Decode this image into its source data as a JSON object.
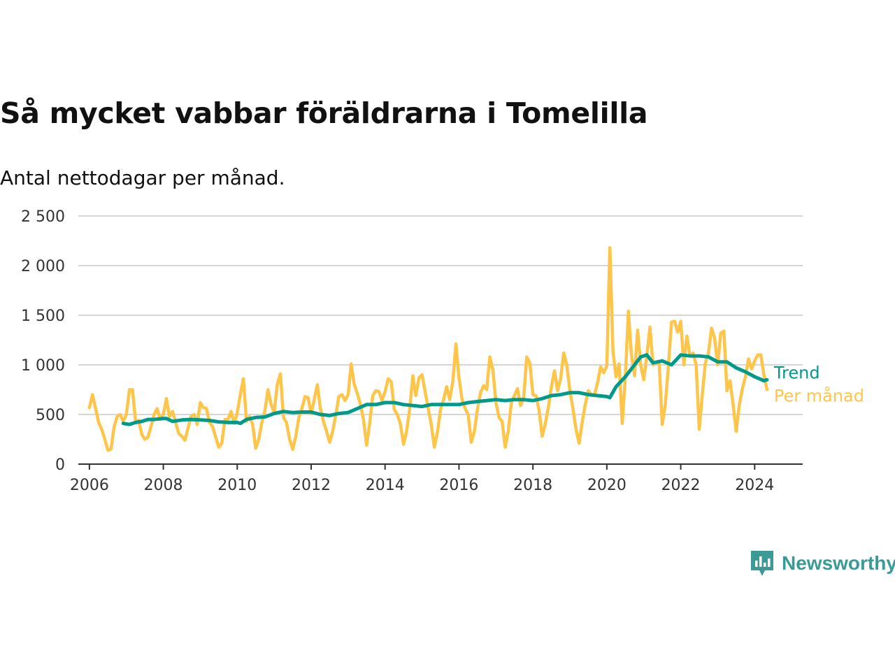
{
  "header": {
    "title": "Så mycket vabbar föräldrarna i Tomelilla",
    "subtitle": "Antal nettodagar per månad."
  },
  "brand": {
    "name": "Newsworthy",
    "icon": "newsworthy-logo-icon",
    "color": "#3a9b96"
  },
  "chart_data": {
    "type": "line",
    "title": "Så mycket vabbar föräldrarna i Tomelilla",
    "subtitle": "Antal nettodagar per månad.",
    "xlabel": "",
    "ylabel": "",
    "xlim": [
      2005.7,
      2025.3
    ],
    "ylim": [
      0,
      2500
    ],
    "x_ticks": [
      2006,
      2008,
      2010,
      2012,
      2014,
      2016,
      2018,
      2020,
      2022,
      2024
    ],
    "x_tick_labels": [
      "2006",
      "2008",
      "2010",
      "2012",
      "2014",
      "2016",
      "2018",
      "2020",
      "2022",
      "2024"
    ],
    "y_ticks": [
      0,
      500,
      1000,
      1500,
      2000,
      2500
    ],
    "y_tick_labels": [
      "0",
      "500",
      "1 000",
      "1 500",
      "2 000",
      "2 500"
    ],
    "grid": "horizontal",
    "legend": "inline-right",
    "series": [
      {
        "name": "Per månad",
        "color": "#fdc54a",
        "x": [
          2006.0,
          2006.083,
          2006.167,
          2006.25,
          2006.333,
          2006.417,
          2006.5,
          2006.583,
          2006.667,
          2006.75,
          2006.833,
          2006.917,
          2007.0,
          2007.083,
          2007.167,
          2007.25,
          2007.333,
          2007.417,
          2007.5,
          2007.583,
          2007.667,
          2007.75,
          2007.833,
          2007.917,
          2008.0,
          2008.083,
          2008.167,
          2008.25,
          2008.333,
          2008.417,
          2008.5,
          2008.583,
          2008.667,
          2008.75,
          2008.833,
          2008.917,
          2009.0,
          2009.083,
          2009.167,
          2009.25,
          2009.333,
          2009.417,
          2009.5,
          2009.583,
          2009.667,
          2009.75,
          2009.833,
          2009.917,
          2010.0,
          2010.083,
          2010.167,
          2010.25,
          2010.333,
          2010.417,
          2010.5,
          2010.583,
          2010.667,
          2010.75,
          2010.833,
          2010.917,
          2011.0,
          2011.083,
          2011.167,
          2011.25,
          2011.333,
          2011.417,
          2011.5,
          2011.583,
          2011.667,
          2011.75,
          2011.833,
          2011.917,
          2012.0,
          2012.083,
          2012.167,
          2012.25,
          2012.333,
          2012.417,
          2012.5,
          2012.583,
          2012.667,
          2012.75,
          2012.833,
          2012.917,
          2013.0,
          2013.083,
          2013.167,
          2013.25,
          2013.333,
          2013.417,
          2013.5,
          2013.583,
          2013.667,
          2013.75,
          2013.833,
          2013.917,
          2014.0,
          2014.083,
          2014.167,
          2014.25,
          2014.333,
          2014.417,
          2014.5,
          2014.583,
          2014.667,
          2014.75,
          2014.833,
          2014.917,
          2015.0,
          2015.083,
          2015.167,
          2015.25,
          2015.333,
          2015.417,
          2015.5,
          2015.583,
          2015.667,
          2015.75,
          2015.833,
          2015.917,
          2016.0,
          2016.083,
          2016.167,
          2016.25,
          2016.333,
          2016.417,
          2016.5,
          2016.583,
          2016.667,
          2016.75,
          2016.833,
          2016.917,
          2017.0,
          2017.083,
          2017.167,
          2017.25,
          2017.333,
          2017.417,
          2017.5,
          2017.583,
          2017.667,
          2017.75,
          2017.833,
          2017.917,
          2018.0,
          2018.083,
          2018.167,
          2018.25,
          2018.333,
          2018.417,
          2018.5,
          2018.583,
          2018.667,
          2018.75,
          2018.833,
          2018.917,
          2019.0,
          2019.083,
          2019.167,
          2019.25,
          2019.333,
          2019.417,
          2019.5,
          2019.583,
          2019.667,
          2019.75,
          2019.833,
          2019.917,
          2020.0,
          2020.083,
          2020.167,
          2020.25,
          2020.333,
          2020.417,
          2020.5,
          2020.583,
          2020.667,
          2020.75,
          2020.833,
          2020.917,
          2021.0,
          2021.083,
          2021.167,
          2021.25,
          2021.333,
          2021.417,
          2021.5,
          2021.583,
          2021.667,
          2021.75,
          2021.833,
          2021.917,
          2022.0,
          2022.083,
          2022.167,
          2022.25,
          2022.333,
          2022.417,
          2022.5,
          2022.583,
          2022.667,
          2022.75,
          2022.833,
          2022.917,
          2023.0,
          2023.083,
          2023.167,
          2023.25,
          2023.333,
          2023.417,
          2023.5,
          2023.583,
          2023.667,
          2023.75,
          2023.833,
          2023.917,
          2024.0,
          2024.083,
          2024.167,
          2024.25,
          2024.333
        ],
        "values": [
          570,
          700,
          560,
          420,
          350,
          250,
          140,
          150,
          370,
          480,
          500,
          430,
          500,
          750,
          750,
          430,
          440,
          300,
          250,
          270,
          380,
          500,
          560,
          450,
          500,
          660,
          480,
          530,
          420,
          310,
          280,
          240,
          360,
          480,
          500,
          400,
          620,
          570,
          560,
          420,
          380,
          270,
          170,
          210,
          450,
          450,
          530,
          410,
          520,
          700,
          860,
          430,
          480,
          400,
          160,
          250,
          420,
          540,
          750,
          600,
          520,
          800,
          910,
          470,
          420,
          250,
          150,
          280,
          470,
          560,
          680,
          670,
          510,
          650,
          800,
          560,
          430,
          330,
          220,
          330,
          500,
          680,
          700,
          640,
          700,
          1010,
          800,
          710,
          600,
          450,
          190,
          410,
          690,
          740,
          730,
          640,
          730,
          860,
          830,
          550,
          500,
          400,
          200,
          330,
          560,
          890,
          690,
          870,
          900,
          730,
          560,
          400,
          170,
          320,
          550,
          650,
          780,
          650,
          830,
          1210,
          870,
          650,
          560,
          500,
          220,
          330,
          560,
          720,
          790,
          750,
          1080,
          950,
          620,
          470,
          430,
          170,
          330,
          620,
          690,
          760,
          590,
          660,
          1080,
          1020,
          700,
          690,
          540,
          280,
          400,
          570,
          780,
          940,
          740,
          860,
          1120,
          1000,
          740,
          560,
          350,
          210,
          420,
          600,
          740,
          700,
          700,
          820,
          980,
          920,
          990,
          2180,
          1130,
          880,
          1010,
          410,
          870,
          1540,
          1100,
          890,
          1350,
          1000,
          850,
          1100,
          1380,
          1000,
          1030,
          1010,
          400,
          600,
          1000,
          1430,
          1440,
          1330,
          1440,
          1000,
          1290,
          1090,
          1120,
          1000,
          350,
          700,
          1020,
          1120,
          1370,
          1270,
          1000,
          1320,
          1340,
          740,
          840,
          600,
          330,
          590,
          760,
          880,
          1060,
          960,
          1040,
          1100,
          1100,
          900,
          750
        ]
      },
      {
        "name": "Trend",
        "color": "#00998a",
        "x": [
          2006.917,
          2007.083,
          2007.25,
          2007.417,
          2007.583,
          2007.75,
          2008.0,
          2008.083,
          2008.25,
          2008.5,
          2008.75,
          2009.0,
          2009.25,
          2009.5,
          2009.75,
          2010.0,
          2010.083,
          2010.25,
          2010.5,
          2010.75,
          2011.0,
          2011.25,
          2011.5,
          2011.75,
          2012.0,
          2012.25,
          2012.5,
          2012.75,
          2013.0,
          2013.25,
          2013.5,
          2013.75,
          2014.0,
          2014.25,
          2014.5,
          2014.75,
          2015.0,
          2015.25,
          2015.5,
          2015.75,
          2016.0,
          2016.25,
          2016.5,
          2016.75,
          2017.0,
          2017.25,
          2017.5,
          2017.75,
          2018.0,
          2018.25,
          2018.5,
          2018.75,
          2019.0,
          2019.25,
          2019.5,
          2019.75,
          2020.0,
          2020.083,
          2020.25,
          2020.5,
          2020.75,
          2020.917,
          2021.083,
          2021.25,
          2021.5,
          2021.75,
          2022.0,
          2022.25,
          2022.5,
          2022.75,
          2023.0,
          2023.25,
          2023.5,
          2023.75,
          2024.0,
          2024.25,
          2024.333
        ],
        "values": [
          410,
          400,
          420,
          430,
          450,
          450,
          460,
          460,
          430,
          445,
          450,
          445,
          440,
          425,
          420,
          420,
          410,
          450,
          470,
          475,
          510,
          530,
          520,
          525,
          525,
          500,
          490,
          510,
          520,
          560,
          600,
          600,
          620,
          620,
          600,
          590,
          580,
          600,
          600,
          600,
          600,
          620,
          630,
          640,
          650,
          640,
          650,
          650,
          640,
          660,
          690,
          700,
          720,
          720,
          700,
          690,
          680,
          670,
          780,
          880,
          1000,
          1080,
          1100,
          1020,
          1040,
          1000,
          1100,
          1090,
          1090,
          1080,
          1030,
          1030,
          970,
          930,
          880,
          840,
          850
        ]
      }
    ]
  }
}
